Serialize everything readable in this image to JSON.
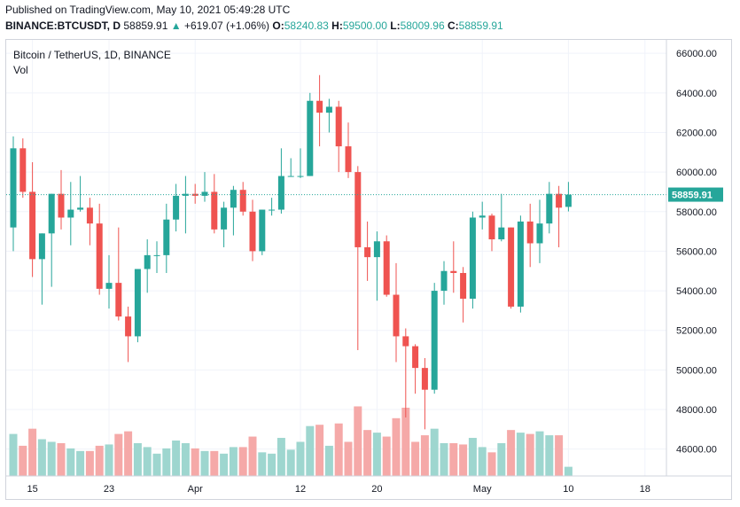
{
  "header": {
    "published": "Published on TradingView.com, May 10, 2021 05:49:28 UTC",
    "symbol": "BINANCE:BTCUSDT, D",
    "last": "58859.91",
    "change_arrow": "▲",
    "change": "+619.07 (+1.06%)",
    "o_label": "O:",
    "o_value": "58240.83",
    "h_label": "H:",
    "h_value": "59500.00",
    "l_label": "L:",
    "l_value": "58009.96",
    "c_label": "C:",
    "c_value": "58859.91"
  },
  "legend": {
    "title": "Bitcoin / TetherUS, 1D, BINANCE",
    "volume_label": "Vol"
  },
  "price_tag": "58859.91",
  "colors": {
    "up": "#26a69a",
    "down": "#ef5350",
    "vol_up": "#9ed6cf",
    "vol_down": "#f5a9a8",
    "grid": "#f0f3fa",
    "axis_text": "#131722"
  },
  "chart_data": {
    "type": "candlestick",
    "y_ticks": [
      "66000.00",
      "64000.00",
      "62000.00",
      "60000.00",
      "58000.00",
      "56000.00",
      "54000.00",
      "52000.00",
      "50000.00",
      "48000.00",
      "46000.00"
    ],
    "ylim": [
      45000,
      66500
    ],
    "x_ticks": [
      {
        "label": "15",
        "index": 2
      },
      {
        "label": "23",
        "index": 10
      },
      {
        "label": "Apr",
        "index": 19
      },
      {
        "label": "12",
        "index": 30
      },
      {
        "label": "20",
        "index": 38
      },
      {
        "label": "May",
        "index": 49
      },
      {
        "label": "10",
        "index": 58
      },
      {
        "label": "18",
        "index": 66
      }
    ],
    "candles": [
      {
        "date": "2021-03-13",
        "o": 57200,
        "h": 61800,
        "l": 56000,
        "c": 61200,
        "v": 3.2
      },
      {
        "date": "2021-03-14",
        "o": 61200,
        "h": 61700,
        "l": 58700,
        "c": 59000,
        "v": 2.3
      },
      {
        "date": "2021-03-15",
        "o": 59000,
        "h": 60500,
        "l": 54700,
        "c": 55600,
        "v": 3.6
      },
      {
        "date": "2021-03-16",
        "o": 55600,
        "h": 56900,
        "l": 53300,
        "c": 56900,
        "v": 2.8
      },
      {
        "date": "2021-03-17",
        "o": 56900,
        "h": 58900,
        "l": 54200,
        "c": 58900,
        "v": 2.6
      },
      {
        "date": "2021-03-18",
        "o": 58900,
        "h": 60100,
        "l": 57100,
        "c": 57700,
        "v": 2.5
      },
      {
        "date": "2021-03-19",
        "o": 57700,
        "h": 59500,
        "l": 56300,
        "c": 58100,
        "v": 2.1
      },
      {
        "date": "2021-03-20",
        "o": 58100,
        "h": 59800,
        "l": 58000,
        "c": 58200,
        "v": 1.9
      },
      {
        "date": "2021-03-21",
        "o": 58200,
        "h": 58700,
        "l": 56300,
        "c": 57400,
        "v": 1.9
      },
      {
        "date": "2021-03-22",
        "o": 57400,
        "h": 58400,
        "l": 53800,
        "c": 54100,
        "v": 2.3
      },
      {
        "date": "2021-03-23",
        "o": 54100,
        "h": 55800,
        "l": 53100,
        "c": 54400,
        "v": 2.4
      },
      {
        "date": "2021-03-24",
        "o": 54400,
        "h": 57200,
        "l": 52500,
        "c": 52700,
        "v": 3.2
      },
      {
        "date": "2021-03-25",
        "o": 52700,
        "h": 53200,
        "l": 50400,
        "c": 51700,
        "v": 3.4
      },
      {
        "date": "2021-03-26",
        "o": 51700,
        "h": 55100,
        "l": 51400,
        "c": 55100,
        "v": 2.5
      },
      {
        "date": "2021-03-27",
        "o": 55100,
        "h": 56600,
        "l": 53900,
        "c": 55800,
        "v": 2.2
      },
      {
        "date": "2021-03-28",
        "o": 55800,
        "h": 56500,
        "l": 54900,
        "c": 55800,
        "v": 1.7
      },
      {
        "date": "2021-03-29",
        "o": 55800,
        "h": 58400,
        "l": 54900,
        "c": 57600,
        "v": 2.1
      },
      {
        "date": "2021-03-30",
        "o": 57600,
        "h": 59400,
        "l": 57000,
        "c": 58800,
        "v": 2.7
      },
      {
        "date": "2021-03-31",
        "o": 58800,
        "h": 59800,
        "l": 56900,
        "c": 58900,
        "v": 2.5
      },
      {
        "date": "2021-04-01",
        "o": 58900,
        "h": 59400,
        "l": 58400,
        "c": 58800,
        "v": 2.1
      },
      {
        "date": "2021-04-02",
        "o": 58800,
        "h": 60000,
        "l": 58500,
        "c": 59000,
        "v": 1.9
      },
      {
        "date": "2021-04-03",
        "o": 59000,
        "h": 59900,
        "l": 56900,
        "c": 57100,
        "v": 1.9
      },
      {
        "date": "2021-04-04",
        "o": 57100,
        "h": 58500,
        "l": 56200,
        "c": 58200,
        "v": 1.7
      },
      {
        "date": "2021-04-05",
        "o": 58200,
        "h": 59300,
        "l": 56800,
        "c": 59100,
        "v": 2.2
      },
      {
        "date": "2021-04-06",
        "o": 59100,
        "h": 59500,
        "l": 57800,
        "c": 58000,
        "v": 2.2
      },
      {
        "date": "2021-04-07",
        "o": 58000,
        "h": 58600,
        "l": 55500,
        "c": 56000,
        "v": 3.0
      },
      {
        "date": "2021-04-08",
        "o": 56000,
        "h": 58100,
        "l": 55800,
        "c": 58100,
        "v": 1.8
      },
      {
        "date": "2021-04-09",
        "o": 58100,
        "h": 58700,
        "l": 57800,
        "c": 58100,
        "v": 1.7
      },
      {
        "date": "2021-04-10",
        "o": 58100,
        "h": 61200,
        "l": 57900,
        "c": 59800,
        "v": 2.9
      },
      {
        "date": "2021-04-11",
        "o": 59800,
        "h": 60700,
        "l": 59800,
        "c": 59800,
        "v": 2.0
      },
      {
        "date": "2021-04-12",
        "o": 59800,
        "h": 61200,
        "l": 59700,
        "c": 59800,
        "v": 2.6
      },
      {
        "date": "2021-04-13",
        "o": 59800,
        "h": 64000,
        "l": 59800,
        "c": 63600,
        "v": 3.8
      },
      {
        "date": "2021-04-14",
        "o": 63600,
        "h": 64900,
        "l": 61300,
        "c": 63000,
        "v": 3.9
      },
      {
        "date": "2021-04-15",
        "o": 63000,
        "h": 63700,
        "l": 62000,
        "c": 63300,
        "v": 2.3
      },
      {
        "date": "2021-04-16",
        "o": 63300,
        "h": 63600,
        "l": 60000,
        "c": 61300,
        "v": 4.0
      },
      {
        "date": "2021-04-17",
        "o": 61300,
        "h": 62500,
        "l": 59700,
        "c": 60000,
        "v": 2.6
      },
      {
        "date": "2021-04-18",
        "o": 60000,
        "h": 60300,
        "l": 51000,
        "c": 56200,
        "v": 5.3
      },
      {
        "date": "2021-04-19",
        "o": 56200,
        "h": 57500,
        "l": 54500,
        "c": 55700,
        "v": 3.5
      },
      {
        "date": "2021-04-20",
        "o": 55700,
        "h": 57000,
        "l": 53500,
        "c": 56500,
        "v": 3.3
      },
      {
        "date": "2021-04-21",
        "o": 56500,
        "h": 56800,
        "l": 53700,
        "c": 53800,
        "v": 3.0
      },
      {
        "date": "2021-04-22",
        "o": 53800,
        "h": 55400,
        "l": 50400,
        "c": 51700,
        "v": 4.4
      },
      {
        "date": "2021-04-23",
        "o": 51700,
        "h": 52100,
        "l": 47600,
        "c": 51200,
        "v": 5.2
      },
      {
        "date": "2021-04-24",
        "o": 51200,
        "h": 51300,
        "l": 48800,
        "c": 50100,
        "v": 2.6
      },
      {
        "date": "2021-04-25",
        "o": 50100,
        "h": 50600,
        "l": 47000,
        "c": 49000,
        "v": 3.1
      },
      {
        "date": "2021-04-26",
        "o": 49000,
        "h": 54400,
        "l": 48800,
        "c": 54000,
        "v": 3.6
      },
      {
        "date": "2021-04-27",
        "o": 54000,
        "h": 55500,
        "l": 53300,
        "c": 55000,
        "v": 2.5
      },
      {
        "date": "2021-04-28",
        "o": 55000,
        "h": 56500,
        "l": 53900,
        "c": 54900,
        "v": 2.5
      },
      {
        "date": "2021-04-29",
        "o": 54900,
        "h": 55200,
        "l": 52400,
        "c": 53600,
        "v": 2.4
      },
      {
        "date": "2021-04-30",
        "o": 53600,
        "h": 58000,
        "l": 53100,
        "c": 57700,
        "v": 2.9
      },
      {
        "date": "2021-05-01",
        "o": 57700,
        "h": 58500,
        "l": 57100,
        "c": 57800,
        "v": 2.2
      },
      {
        "date": "2021-05-02",
        "o": 57800,
        "h": 57900,
        "l": 56000,
        "c": 56600,
        "v": 1.8
      },
      {
        "date": "2021-05-03",
        "o": 56600,
        "h": 58900,
        "l": 56500,
        "c": 57200,
        "v": 2.5
      },
      {
        "date": "2021-05-04",
        "o": 57200,
        "h": 57200,
        "l": 53100,
        "c": 53200,
        "v": 3.5
      },
      {
        "date": "2021-05-05",
        "o": 53200,
        "h": 57800,
        "l": 52900,
        "c": 57500,
        "v": 3.3
      },
      {
        "date": "2021-05-06",
        "o": 57500,
        "h": 58400,
        "l": 55200,
        "c": 56400,
        "v": 3.2
      },
      {
        "date": "2021-05-07",
        "o": 56400,
        "h": 58600,
        "l": 55400,
        "c": 57400,
        "v": 3.4
      },
      {
        "date": "2021-05-08",
        "o": 57400,
        "h": 59500,
        "l": 56900,
        "c": 58900,
        "v": 3.1
      },
      {
        "date": "2021-05-09",
        "o": 58900,
        "h": 59300,
        "l": 56200,
        "c": 58200,
        "v": 3.1
      },
      {
        "date": "2021-05-10",
        "o": 58240.83,
        "h": 59500,
        "l": 58009.96,
        "c": 58859.91,
        "v": 0.7
      }
    ]
  }
}
